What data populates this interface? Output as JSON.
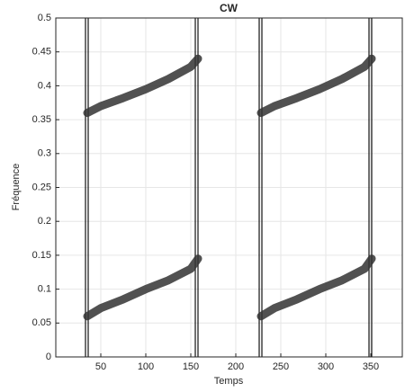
{
  "chart_data": {
    "type": "line",
    "title": "CW",
    "x_label": "Temps",
    "y_label": "Fréquence",
    "x": [
      35,
      50,
      75,
      100,
      125,
      150,
      158,
      193,
      228,
      243,
      268,
      293,
      318,
      343,
      351
    ],
    "series": [
      {
        "color": "#333333",
        "values": [
          0.36,
          0.37,
          0.382,
          0.395,
          0.41,
          0.428,
          0.44,
          null,
          0.36,
          0.37,
          0.382,
          0.395,
          0.41,
          0.428,
          0.44
        ]
      },
      {
        "color": "#333333",
        "values": [
          0.06,
          0.072,
          0.085,
          0.1,
          0.113,
          0.13,
          0.145,
          null,
          0.06,
          0.072,
          0.085,
          0.1,
          0.113,
          0.13,
          0.145
        ]
      }
    ],
    "vlines": [
      33,
      36,
      155,
      158,
      226,
      229,
      348,
      351
    ],
    "xlim": [
      0,
      385
    ],
    "xticks": [
      50,
      100,
      150,
      200,
      250,
      300,
      350
    ],
    "ylim": [
      0,
      0.5
    ],
    "yticks": [
      0,
      0.05,
      0.1,
      0.15,
      0.2,
      0.25,
      0.3,
      0.35,
      0.4,
      0.45,
      0.5
    ],
    "grid": true
  }
}
